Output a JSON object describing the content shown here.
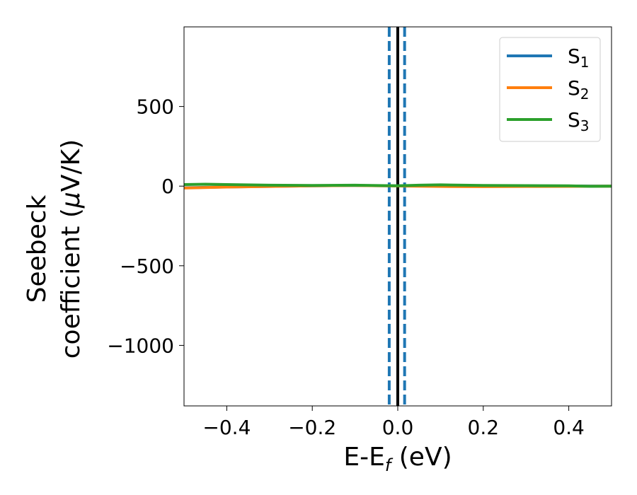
{
  "chart_data": {
    "type": "line",
    "title": "",
    "xlabel": {
      "main": "E-E",
      "sub": "f",
      "unit": " (eV)"
    },
    "ylabel": {
      "line1": "Seebeck",
      "line2_prefix": "coefficient  (",
      "mu": "μ",
      "line2_suffix": "V/K)"
    },
    "xlim": [
      -0.5,
      0.5
    ],
    "ylim": [
      -1380,
      1000
    ],
    "x_ticks": [
      -0.4,
      -0.2,
      0.0,
      0.2,
      0.4
    ],
    "x_tick_labels": [
      "−0.4",
      "−0.2",
      "0.0",
      "0.2",
      "0.4"
    ],
    "y_ticks": [
      500,
      0,
      -500,
      -1000
    ],
    "y_tick_labels": [
      "500",
      "0",
      "−500",
      "−1000"
    ],
    "grid": false,
    "legend_placement": "top-right",
    "series": [
      {
        "name": "S",
        "sub": "1",
        "color": "#1f77b4",
        "x": [
          -0.5,
          -0.4,
          -0.3,
          -0.2,
          -0.1,
          0.0,
          0.1,
          0.2,
          0.3,
          0.4,
          0.5
        ],
        "y": [
          -10,
          -5,
          -2,
          2,
          4,
          2,
          4,
          2,
          2,
          1,
          0
        ]
      },
      {
        "name": "S",
        "sub": "2",
        "color": "#ff7f0e",
        "x": [
          -0.5,
          -0.4,
          -0.3,
          -0.2,
          -0.1,
          0.0,
          0.1,
          0.2,
          0.3,
          0.4,
          0.5
        ],
        "y": [
          -12,
          -6,
          -2,
          2,
          4,
          1,
          -2,
          -3,
          -2,
          -1,
          0
        ]
      },
      {
        "name": "S",
        "sub": "3",
        "color": "#2ca02c",
        "x": [
          -0.5,
          -0.45,
          -0.4,
          -0.3,
          -0.2,
          -0.1,
          0.0,
          0.05,
          0.1,
          0.2,
          0.3,
          0.4,
          0.45,
          0.5
        ],
        "y": [
          10,
          12,
          10,
          6,
          4,
          6,
          2,
          6,
          8,
          4,
          3,
          2,
          -1,
          0
        ]
      }
    ],
    "vlines": [
      {
        "x": 0.0,
        "style": "solid",
        "color": "#000000"
      },
      {
        "x": -0.02,
        "style": "dashed",
        "color": "#1f77b4"
      },
      {
        "x": 0.016,
        "style": "dashed",
        "color": "#1f77b4"
      }
    ]
  }
}
